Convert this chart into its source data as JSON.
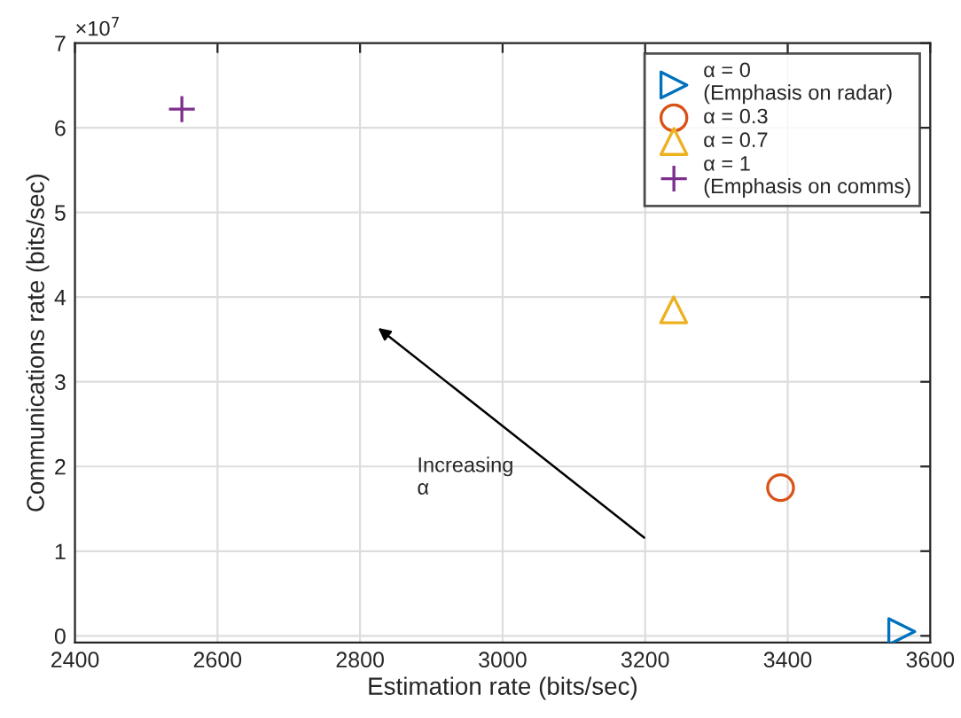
{
  "chart_data": {
    "type": "scatter",
    "xlabel": "Estimation rate (bits/sec)",
    "ylabel": "Communications rate (bits/sec)",
    "series": [
      {
        "name": "α = 0\n(Emphasis on radar)",
        "color": "#0072bd",
        "marker": "triangle",
        "x": [
          3560
        ],
        "values": [
          0.05
        ]
      },
      {
        "name": "α = 0.3",
        "color": "#d95319",
        "marker": "circle",
        "x": [
          3390
        ],
        "values": [
          1.75
        ]
      },
      {
        "name": "α = 0.7",
        "color": "#edb120",
        "marker": "triangle",
        "x": [
          3240
        ],
        "values": [
          3.85
        ]
      },
      {
        "name": "α = 1\n(Emphasis on comms)",
        "color": "#7e2f8e",
        "marker": "cross",
        "x": [
          2550
        ],
        "values": [
          6.22
        ]
      }
    ],
    "xlim": [
      2400,
      3600
    ],
    "xticks": [
      2400,
      2600,
      2800,
      3000,
      3200,
      3400,
      3600
    ],
    "ylim": [
      -0.08,
      7
    ],
    "yticks": [
      0,
      1,
      2,
      3,
      4,
      5,
      6,
      7
    ],
    "annotations": [
      "×10$^{7}$",
      "Increasing\nα"
    ],
    "grid": true,
    "legend": "top right"
  }
}
